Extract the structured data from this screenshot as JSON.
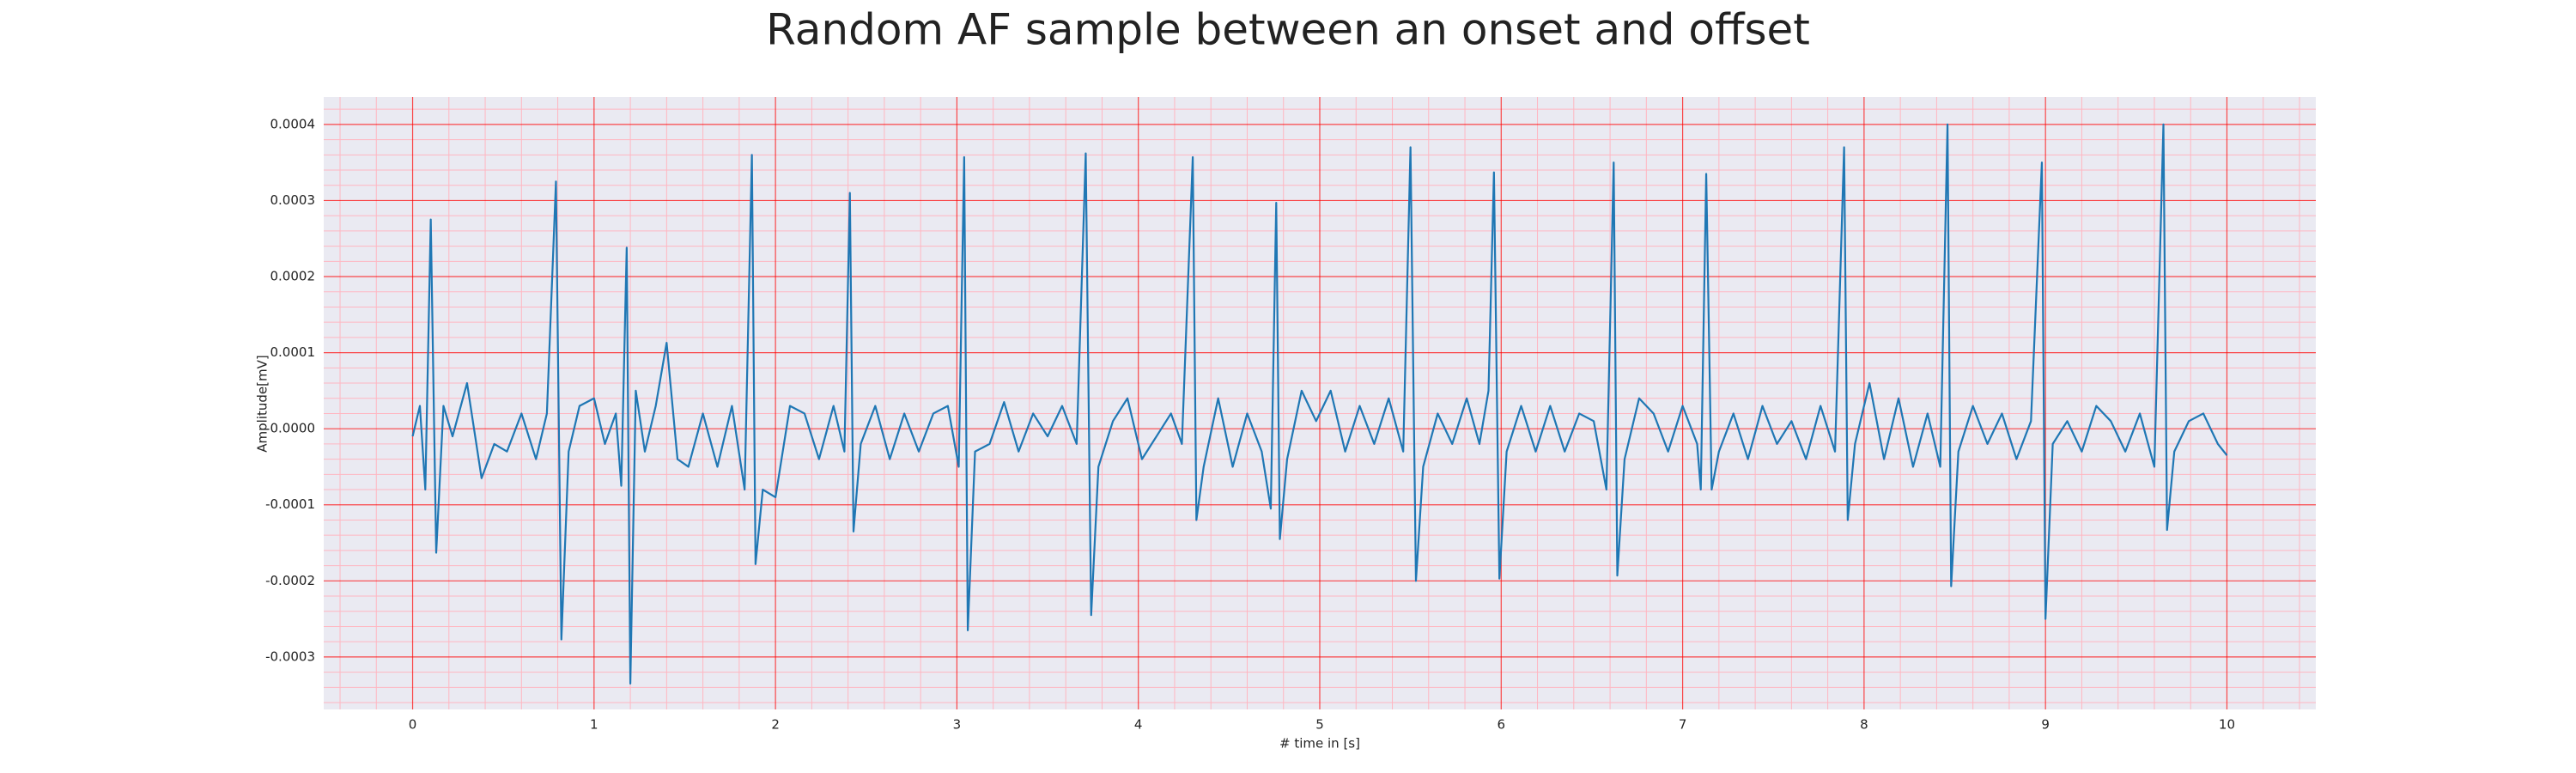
{
  "chart_data": {
    "type": "line",
    "title": "Random AF sample between an onset and offset",
    "x_label": "# time in [s]",
    "y_label": "Amplitude[mV]",
    "x": [
      0,
      0.04,
      0.07,
      0.1,
      0.13,
      0.17,
      0.22,
      0.3,
      0.38,
      0.45,
      0.52,
      0.6,
      0.68,
      0.74,
      0.79,
      0.82,
      0.86,
      0.92,
      1.0,
      1.06,
      1.12,
      1.15,
      1.18,
      1.2,
      1.23,
      1.28,
      1.34,
      1.4,
      1.46,
      1.52,
      1.6,
      1.68,
      1.76,
      1.83,
      1.87,
      1.89,
      1.93,
      2.0,
      2.08,
      2.16,
      2.24,
      2.32,
      2.38,
      2.41,
      2.43,
      2.47,
      2.55,
      2.63,
      2.71,
      2.79,
      2.87,
      2.95,
      3.01,
      3.04,
      3.06,
      3.1,
      3.18,
      3.26,
      3.34,
      3.42,
      3.5,
      3.58,
      3.66,
      3.71,
      3.74,
      3.78,
      3.86,
      3.94,
      4.02,
      4.1,
      4.18,
      4.24,
      4.3,
      4.32,
      4.36,
      4.44,
      4.52,
      4.6,
      4.68,
      4.73,
      4.76,
      4.78,
      4.82,
      4.9,
      4.98,
      5.06,
      5.14,
      5.22,
      5.3,
      5.38,
      5.46,
      5.5,
      5.53,
      5.57,
      5.65,
      5.73,
      5.81,
      5.88,
      5.93,
      5.96,
      5.99,
      6.03,
      6.11,
      6.19,
      6.27,
      6.35,
      6.43,
      6.51,
      6.58,
      6.62,
      6.64,
      6.68,
      6.76,
      6.84,
      6.92,
      7.0,
      7.08,
      7.1,
      7.13,
      7.16,
      7.2,
      7.28,
      7.36,
      7.44,
      7.52,
      7.6,
      7.68,
      7.76,
      7.84,
      7.89,
      7.91,
      7.95,
      8.03,
      8.11,
      8.19,
      8.27,
      8.35,
      8.42,
      8.46,
      8.48,
      8.52,
      8.6,
      8.68,
      8.76,
      8.84,
      8.92,
      8.98,
      9.0,
      9.04,
      9.12,
      9.2,
      9.28,
      9.36,
      9.44,
      9.52,
      9.6,
      9.65,
      9.67,
      9.71,
      9.79,
      9.87,
      9.95,
      10.0
    ],
    "values": [
      -1e-05,
      3e-05,
      -8e-05,
      0.000275,
      -0.000163,
      3e-05,
      -1e-05,
      6e-05,
      -6.5e-05,
      -2e-05,
      -3e-05,
      2e-05,
      -4e-05,
      2e-05,
      0.000325,
      -0.000277,
      -3e-05,
      3e-05,
      4e-05,
      -2e-05,
      2e-05,
      -7.5e-05,
      0.000238,
      -0.000335,
      5e-05,
      -3e-05,
      3e-05,
      0.000113,
      -4e-05,
      -5e-05,
      2e-05,
      -5e-05,
      3e-05,
      -8e-05,
      0.00036,
      -0.000178,
      -8e-05,
      -9e-05,
      3e-05,
      2e-05,
      -4e-05,
      3e-05,
      -3e-05,
      0.00031,
      -0.000135,
      -2e-05,
      3e-05,
      -4e-05,
      2e-05,
      -3e-05,
      2e-05,
      3e-05,
      -5e-05,
      0.000357,
      -0.000265,
      -3e-05,
      -2e-05,
      3.5e-05,
      -3e-05,
      2e-05,
      -1e-05,
      3e-05,
      -2e-05,
      0.000362,
      -0.000245,
      -5e-05,
      1e-05,
      4e-05,
      -4e-05,
      -1e-05,
      2e-05,
      -2e-05,
      0.000357,
      -0.00012,
      -5e-05,
      4e-05,
      -5e-05,
      2e-05,
      -3e-05,
      -0.000105,
      0.000297,
      -0.000145,
      -4e-05,
      5e-05,
      1e-05,
      5e-05,
      -3e-05,
      3e-05,
      -2e-05,
      4e-05,
      -3e-05,
      0.00037,
      -0.0002,
      -5e-05,
      2e-05,
      -2e-05,
      4e-05,
      -2e-05,
      5e-05,
      0.000337,
      -0.000197,
      -3e-05,
      3e-05,
      -3e-05,
      3e-05,
      -3e-05,
      2e-05,
      1e-05,
      -8e-05,
      0.00035,
      -0.000193,
      -4e-05,
      4e-05,
      2e-05,
      -3e-05,
      3e-05,
      -2e-05,
      -8e-05,
      0.000335,
      -8e-05,
      -3e-05,
      2e-05,
      -4e-05,
      3e-05,
      -2e-05,
      1e-05,
      -4e-05,
      3e-05,
      -3e-05,
      0.00037,
      -0.00012,
      -2e-05,
      6e-05,
      -4e-05,
      4e-05,
      -5e-05,
      2e-05,
      -5e-05,
      0.0004,
      -0.000207,
      -3e-05,
      3e-05,
      -2e-05,
      2e-05,
      -4e-05,
      1e-05,
      0.00035,
      -0.00025,
      -2e-05,
      1e-05,
      -3e-05,
      3e-05,
      1e-05,
      -3e-05,
      2e-05,
      -5e-05,
      0.0004,
      -0.000133,
      -3e-05,
      1e-05,
      2e-05,
      -2e-05,
      -3.5e-05
    ],
    "color": "#1f77b4",
    "xlim": [
      -0.49,
      10.49
    ],
    "ylim": [
      -0.000369,
      0.000436
    ],
    "xticks": [
      0,
      1,
      2,
      3,
      4,
      5,
      6,
      7,
      8,
      9,
      10
    ],
    "yticks": [
      {
        "value": -0.0003,
        "label": "-0.0003"
      },
      {
        "value": -0.0002,
        "label": "-0.0002"
      },
      {
        "value": -0.0001,
        "label": "-0.0001"
      },
      {
        "value": 0,
        "label": "0.0000"
      },
      {
        "value": 0.0001,
        "label": "0.0001"
      },
      {
        "value": 0.0002,
        "label": "0.0002"
      },
      {
        "value": 0.0003,
        "label": "0.0003"
      },
      {
        "value": 0.0004,
        "label": "0.0004"
      }
    ],
    "grid": true,
    "minor_grid": true,
    "grid_color": "#ff0000",
    "minor_grid_color": "#ffb6c1",
    "background_color": "#eaeaf2"
  }
}
